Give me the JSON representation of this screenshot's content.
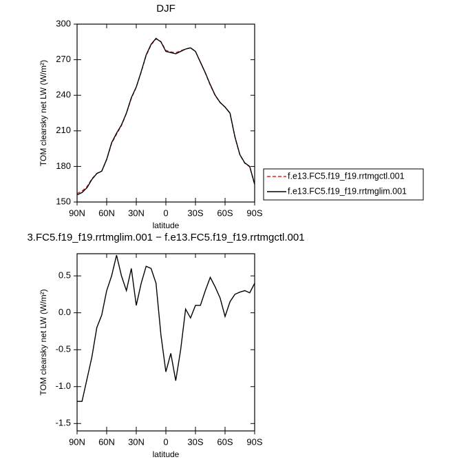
{
  "chart_data": [
    {
      "type": "line",
      "title": "DJF",
      "x_label": "latitude",
      "y_label": "TOM clearsky net LW (W/m²)",
      "x": [
        90,
        85,
        80,
        75,
        70,
        65,
        60,
        55,
        50,
        45,
        40,
        35,
        30,
        25,
        20,
        15,
        10,
        5,
        0,
        -5,
        -10,
        -15,
        -20,
        -25,
        -30,
        -35,
        -40,
        -45,
        -50,
        -55,
        -60,
        -65,
        -70,
        -75,
        -80,
        -85,
        -90
      ],
      "xlim": [
        90,
        -90
      ],
      "xticks": [
        {
          "value": 90,
          "label": "90N"
        },
        {
          "value": 60,
          "label": "60N"
        },
        {
          "value": 30,
          "label": "30N"
        },
        0,
        {
          "value": -30,
          "label": "30S"
        },
        {
          "value": -60,
          "label": "60S"
        },
        {
          "value": -90,
          "label": "90S"
        }
      ],
      "ylim": [
        150,
        300
      ],
      "yticks": [
        150,
        180,
        210,
        240,
        270,
        300
      ],
      "legend": "right",
      "series": [
        {
          "name": "f.e13.FC5.f19_f19.rrtmgctl.001",
          "color": "#d62020",
          "dashed": true,
          "values": [
            157.2,
            159.2,
            162.9,
            169.6,
            174.2,
            176.0,
            185.7,
            199.5,
            207.2,
            214.5,
            224.7,
            237.4,
            246.9,
            259.6,
            273.4,
            282.4,
            287.6,
            285.3,
            277.8,
            276.6,
            275.9,
            277.5,
            279.0,
            280.1,
            276.9,
            267.9,
            258.7,
            248.5,
            239.7,
            233.8,
            230.1,
            224.9,
            204.8,
            189.7,
            182.7,
            179.7,
            164.6
          ]
        },
        {
          "name": "f.e13.FC5.f19_f19.rrtmglim.001",
          "color": "#000000",
          "dashed": false,
          "values": [
            156,
            158,
            162,
            169,
            174,
            176,
            186,
            200,
            208,
            215,
            225,
            238,
            247,
            260,
            274,
            283,
            288,
            285,
            277,
            276,
            275,
            277,
            279,
            280,
            277,
            268,
            259,
            249,
            240,
            234,
            230,
            225,
            205,
            190,
            183,
            180,
            165
          ]
        }
      ]
    },
    {
      "type": "line",
      "title": "3.FC5.f19_f19.rrtmglim.001 − f.e13.FC5.f19_f19.rrtmgctl.001",
      "x_label": "latitude",
      "y_label": "TOM clearsky net LW (W/m²)",
      "x": [
        90,
        85,
        80,
        75,
        70,
        65,
        60,
        55,
        50,
        45,
        40,
        35,
        30,
        25,
        20,
        15,
        10,
        5,
        0,
        -5,
        -10,
        -15,
        -20,
        -25,
        -30,
        -35,
        -40,
        -45,
        -50,
        -55,
        -60,
        -65,
        -70,
        -75,
        -80,
        -85,
        -90
      ],
      "xlim": [
        90,
        -90
      ],
      "xticks": [
        {
          "value": 90,
          "label": "90N"
        },
        {
          "value": 60,
          "label": "60N"
        },
        {
          "value": 30,
          "label": "30N"
        },
        0,
        {
          "value": -30,
          "label": "30S"
        },
        {
          "value": -60,
          "label": "60S"
        },
        {
          "value": -90,
          "label": "90S"
        }
      ],
      "ylim": [
        -1.6,
        0.8
      ],
      "yticks": [
        -1.5,
        {
          "value": -1,
          "label": "-1.0"
        },
        -0.5,
        {
          "value": 0,
          "label": "0.0"
        },
        0.5
      ],
      "series": [
        {
          "color": "#000000",
          "dashed": false,
          "values": [
            -1.2,
            -1.2,
            -0.9,
            -0.6,
            -0.2,
            -0.03,
            0.3,
            0.5,
            0.78,
            0.5,
            0.3,
            0.6,
            0.1,
            0.4,
            0.63,
            0.6,
            0.4,
            -0.3,
            -0.8,
            -0.55,
            -0.92,
            -0.5,
            0.05,
            -0.07,
            0.1,
            0.1,
            0.3,
            0.48,
            0.35,
            0.2,
            -0.05,
            0.15,
            0.25,
            0.28,
            0.3,
            0.27,
            0.4
          ]
        }
      ]
    }
  ]
}
